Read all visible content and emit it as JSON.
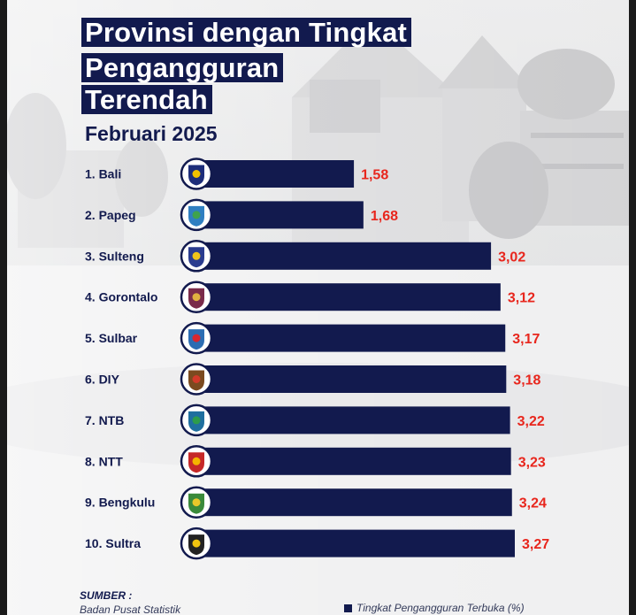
{
  "header": {
    "title_lines": [
      "Provinsi dengan Tingkat",
      "Pengangguran",
      "Terendah"
    ],
    "subtitle": "Februari 2025"
  },
  "chart_data": {
    "type": "bar",
    "orientation": "horizontal",
    "categories": [
      "1. Bali",
      "2. Papeg",
      "3. Sulteng",
      "4. Gorontalo",
      "5. Sulbar",
      "6. DIY",
      "7. NTB",
      "8. NTT",
      "9. Bengkulu",
      "10. Sultra"
    ],
    "series": [
      {
        "name": "Tingkat Pengangguran Terbuka (%)",
        "values": [
          1.58,
          1.68,
          3.02,
          3.12,
          3.17,
          3.18,
          3.22,
          3.23,
          3.24,
          3.27
        ]
      }
    ],
    "data_labels": [
      "1,58",
      "1,68",
      "3,02",
      "3,12",
      "3,17",
      "3,18",
      "3,22",
      "3,23",
      "3,24",
      "3,27"
    ],
    "xlim": [
      0,
      3.27
    ],
    "grid": false,
    "legend_position": "bottom-right",
    "bar_color": "#121a4e",
    "label_color": "#e8261d"
  },
  "source": {
    "title": "SUMBER :",
    "text": "Badan Pusat Statistik"
  },
  "legend": {
    "label": "Tingkat Pengangguran Terbuka (%)"
  },
  "icons": [
    "bali-emblem-icon",
    "papeg-emblem-icon",
    "sulteng-emblem-icon",
    "gorontalo-emblem-icon",
    "sulbar-emblem-icon",
    "diy-emblem-icon",
    "ntb-emblem-icon",
    "ntt-emblem-icon",
    "bengkulu-emblem-icon",
    "sultra-emblem-icon"
  ],
  "colors": {
    "navy": "#121a4e",
    "accent_red": "#e8261d"
  }
}
